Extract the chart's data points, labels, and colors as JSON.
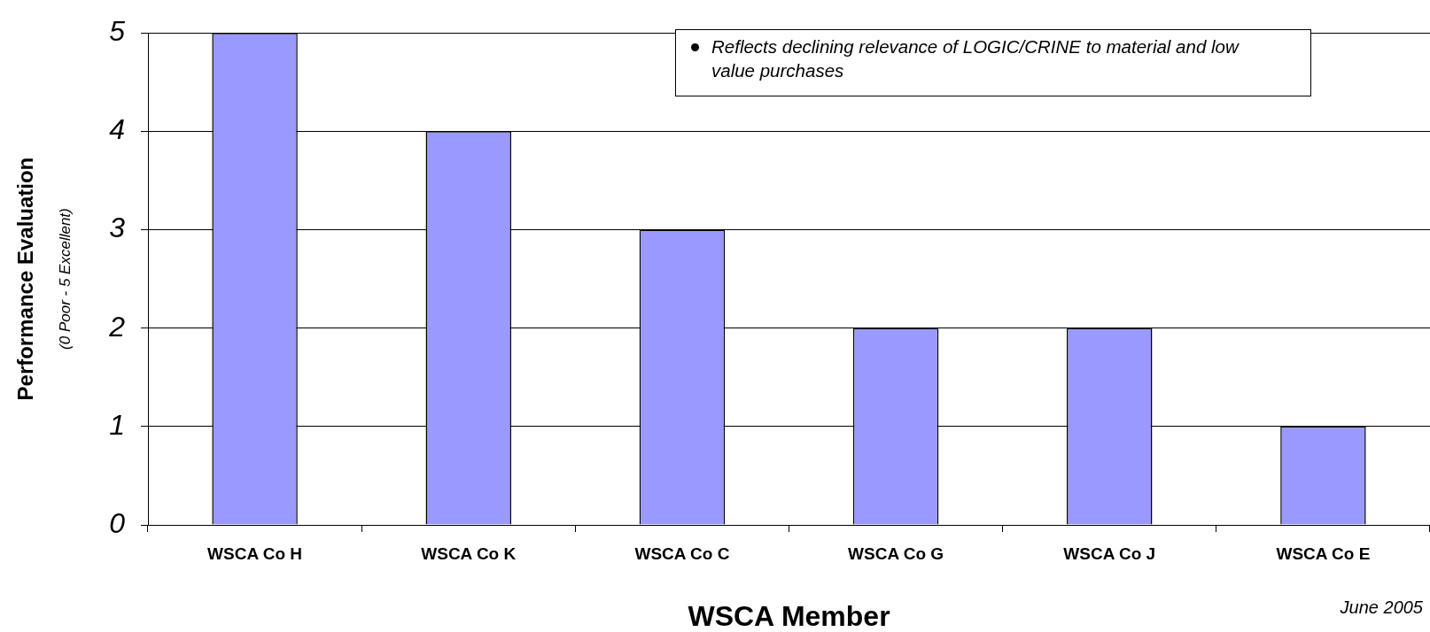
{
  "chart_data": {
    "type": "bar",
    "categories": [
      "WSCA Co H",
      "WSCA Co K",
      "WSCA Co C",
      "WSCA Co G",
      "WSCA Co J",
      "WSCA Co E"
    ],
    "values": [
      5,
      4,
      3,
      2,
      2,
      1
    ],
    "color": "#9999ff",
    "ylim": [
      0,
      5
    ],
    "yticks": [
      0,
      1,
      2,
      3,
      4,
      5
    ],
    "grid": "y",
    "xlabel": "WSCA Member",
    "ylabel": "Performance Evaluation\n(0 Poor - 5 Excellent)",
    "annotations": [
      "Reflects declining relevance of LOGIC/CRINE to material and low value purchases",
      "June 2005"
    ]
  }
}
